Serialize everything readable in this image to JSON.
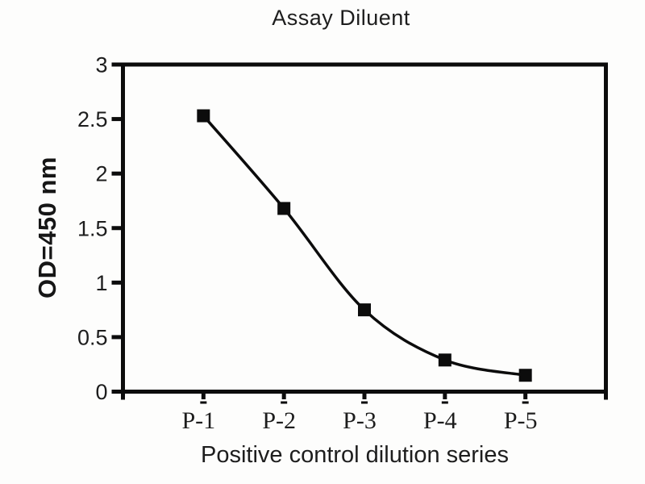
{
  "chart_data": {
    "type": "line",
    "title": "Assay Diluent",
    "xlabel": "Positive control dilution series",
    "ylabel": "OD=450 nm",
    "categories": [
      "P-1",
      "P-2",
      "P-3",
      "P-4",
      "P-5"
    ],
    "values": [
      2.53,
      1.68,
      0.75,
      0.29,
      0.15
    ],
    "y_ticks": [
      0,
      0.5,
      1,
      1.5,
      2,
      2.5,
      3
    ],
    "ylim": [
      0,
      3
    ],
    "grid": false,
    "legend": "none",
    "marker_shape": "filled-square",
    "line_style": "smooth",
    "colors": {
      "ink": "#0c0c0c",
      "text": "#1d1d1d",
      "background": "#fdfdfc"
    }
  }
}
